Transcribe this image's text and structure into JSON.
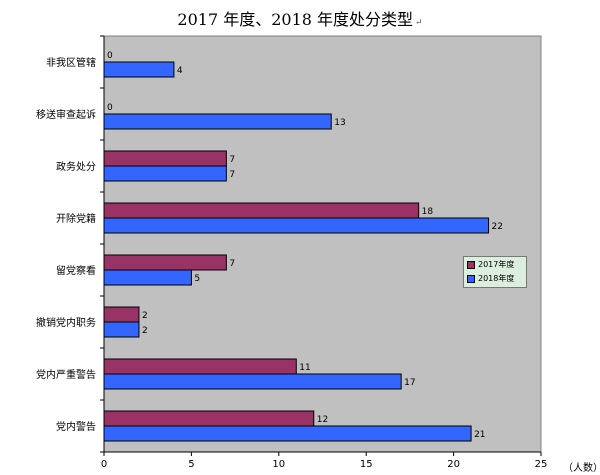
{
  "title": "2017 年度、2018 年度处分类型",
  "title_mark": "↵",
  "unit_label": "（人数）",
  "colors": {
    "plot_background": "#c0c0c0",
    "series_2017": "#993366",
    "series_2018": "#3366ff",
    "legend_background": "#dceede"
  },
  "chart_data": {
    "type": "bar",
    "orientation": "horizontal",
    "title": "2017 年度、2018 年度处分类型",
    "categories": [
      "非我区管辖",
      "移送审查起诉",
      "政务处分",
      "开除党籍",
      "留党察看",
      "撤销党内职务",
      "党内严重警告",
      "党内警告"
    ],
    "series": [
      {
        "name": "2017年度",
        "color": "#993366",
        "values": [
          0,
          0,
          7,
          18,
          7,
          2,
          11,
          12
        ]
      },
      {
        "name": "2018年度",
        "color": "#3366ff",
        "values": [
          4,
          13,
          7,
          22,
          5,
          2,
          17,
          21
        ]
      }
    ],
    "xlim": [
      0,
      25
    ],
    "xticks": [
      0,
      5,
      10,
      15,
      20,
      25
    ],
    "xlabel": "（人数）",
    "ylabel": "",
    "grid": false,
    "legend": "right",
    "data_labels": true
  }
}
